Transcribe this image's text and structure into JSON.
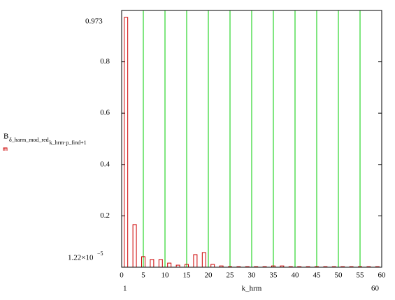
{
  "chart_data": {
    "type": "bar",
    "ylabel": {
      "main": "B",
      "sub1": "δ_harm_mod_red",
      "sub2": "k_hrm·p_find+1"
    },
    "xlabel": "k_hrm",
    "x": [
      1,
      3,
      5,
      7,
      9,
      11,
      13,
      15,
      17,
      19,
      21,
      23,
      25,
      27,
      29,
      31,
      33,
      35,
      37,
      39,
      41,
      43,
      45,
      47,
      49,
      51,
      53,
      55,
      57,
      59
    ],
    "values": [
      0.973,
      0.166,
      0.041,
      0.03,
      0.03,
      0.016,
      0.008,
      0.011,
      0.049,
      0.057,
      0.011,
      0.005,
      0.002,
      0.002,
      0.002,
      0.002,
      0.002,
      0.005,
      0.005,
      0.002,
      0.002,
      0.002,
      0.002,
      0.002,
      0.002,
      0.002,
      0.002,
      0.002,
      0.002,
      0.002
    ],
    "color": "#cc0000",
    "xlim": [
      0,
      60
    ],
    "ylim": [
      0,
      1
    ],
    "xticks": [
      0,
      5,
      10,
      15,
      20,
      25,
      30,
      35,
      40,
      45,
      50,
      55,
      60
    ],
    "yticks": [
      0.2,
      0.4,
      0.6,
      0.8
    ],
    "grid_color": "#00cc00",
    "y_top_label": "0.973",
    "y_bottom_label": {
      "mantissa": "1.22×10",
      "exponent": "−5"
    },
    "x_left_label": "1",
    "x_right_label": "60"
  }
}
